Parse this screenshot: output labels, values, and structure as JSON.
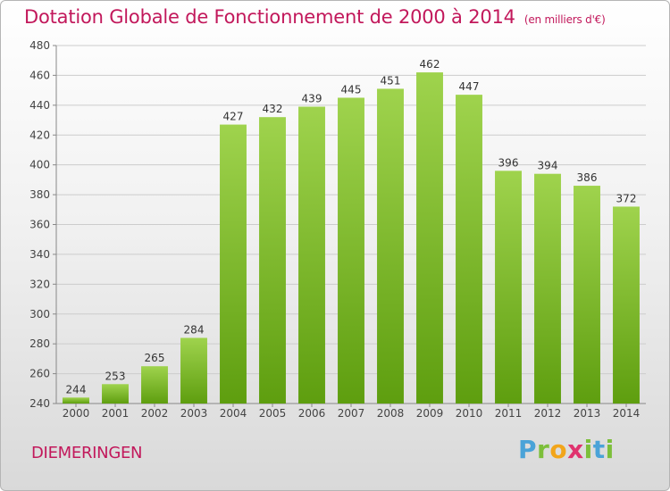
{
  "title": "Dotation Globale de Fonctionnement de 2000 à 2014",
  "unit_label": "(en milliers d'€)",
  "commune": "DIEMERINGEN",
  "logo": [
    "P",
    "r",
    "o",
    "x",
    "i",
    "t",
    "i"
  ],
  "colors": {
    "bar_top": "#9fd34d",
    "bar_bottom": "#5e9e0f",
    "title": "#c2185b",
    "grid": "#cccccc"
  },
  "chart_data": {
    "type": "bar",
    "categories": [
      "2000",
      "2001",
      "2002",
      "2003",
      "2004",
      "2005",
      "2006",
      "2007",
      "2008",
      "2009",
      "2010",
      "2011",
      "2012",
      "2013",
      "2014"
    ],
    "values": [
      244,
      253,
      265,
      284,
      427,
      432,
      439,
      445,
      451,
      462,
      447,
      396,
      394,
      386,
      372
    ],
    "ylim": [
      240,
      480
    ],
    "yticks": [
      240,
      260,
      280,
      300,
      320,
      340,
      360,
      380,
      400,
      420,
      440,
      460,
      480
    ],
    "grid": true,
    "data_labels": true
  }
}
